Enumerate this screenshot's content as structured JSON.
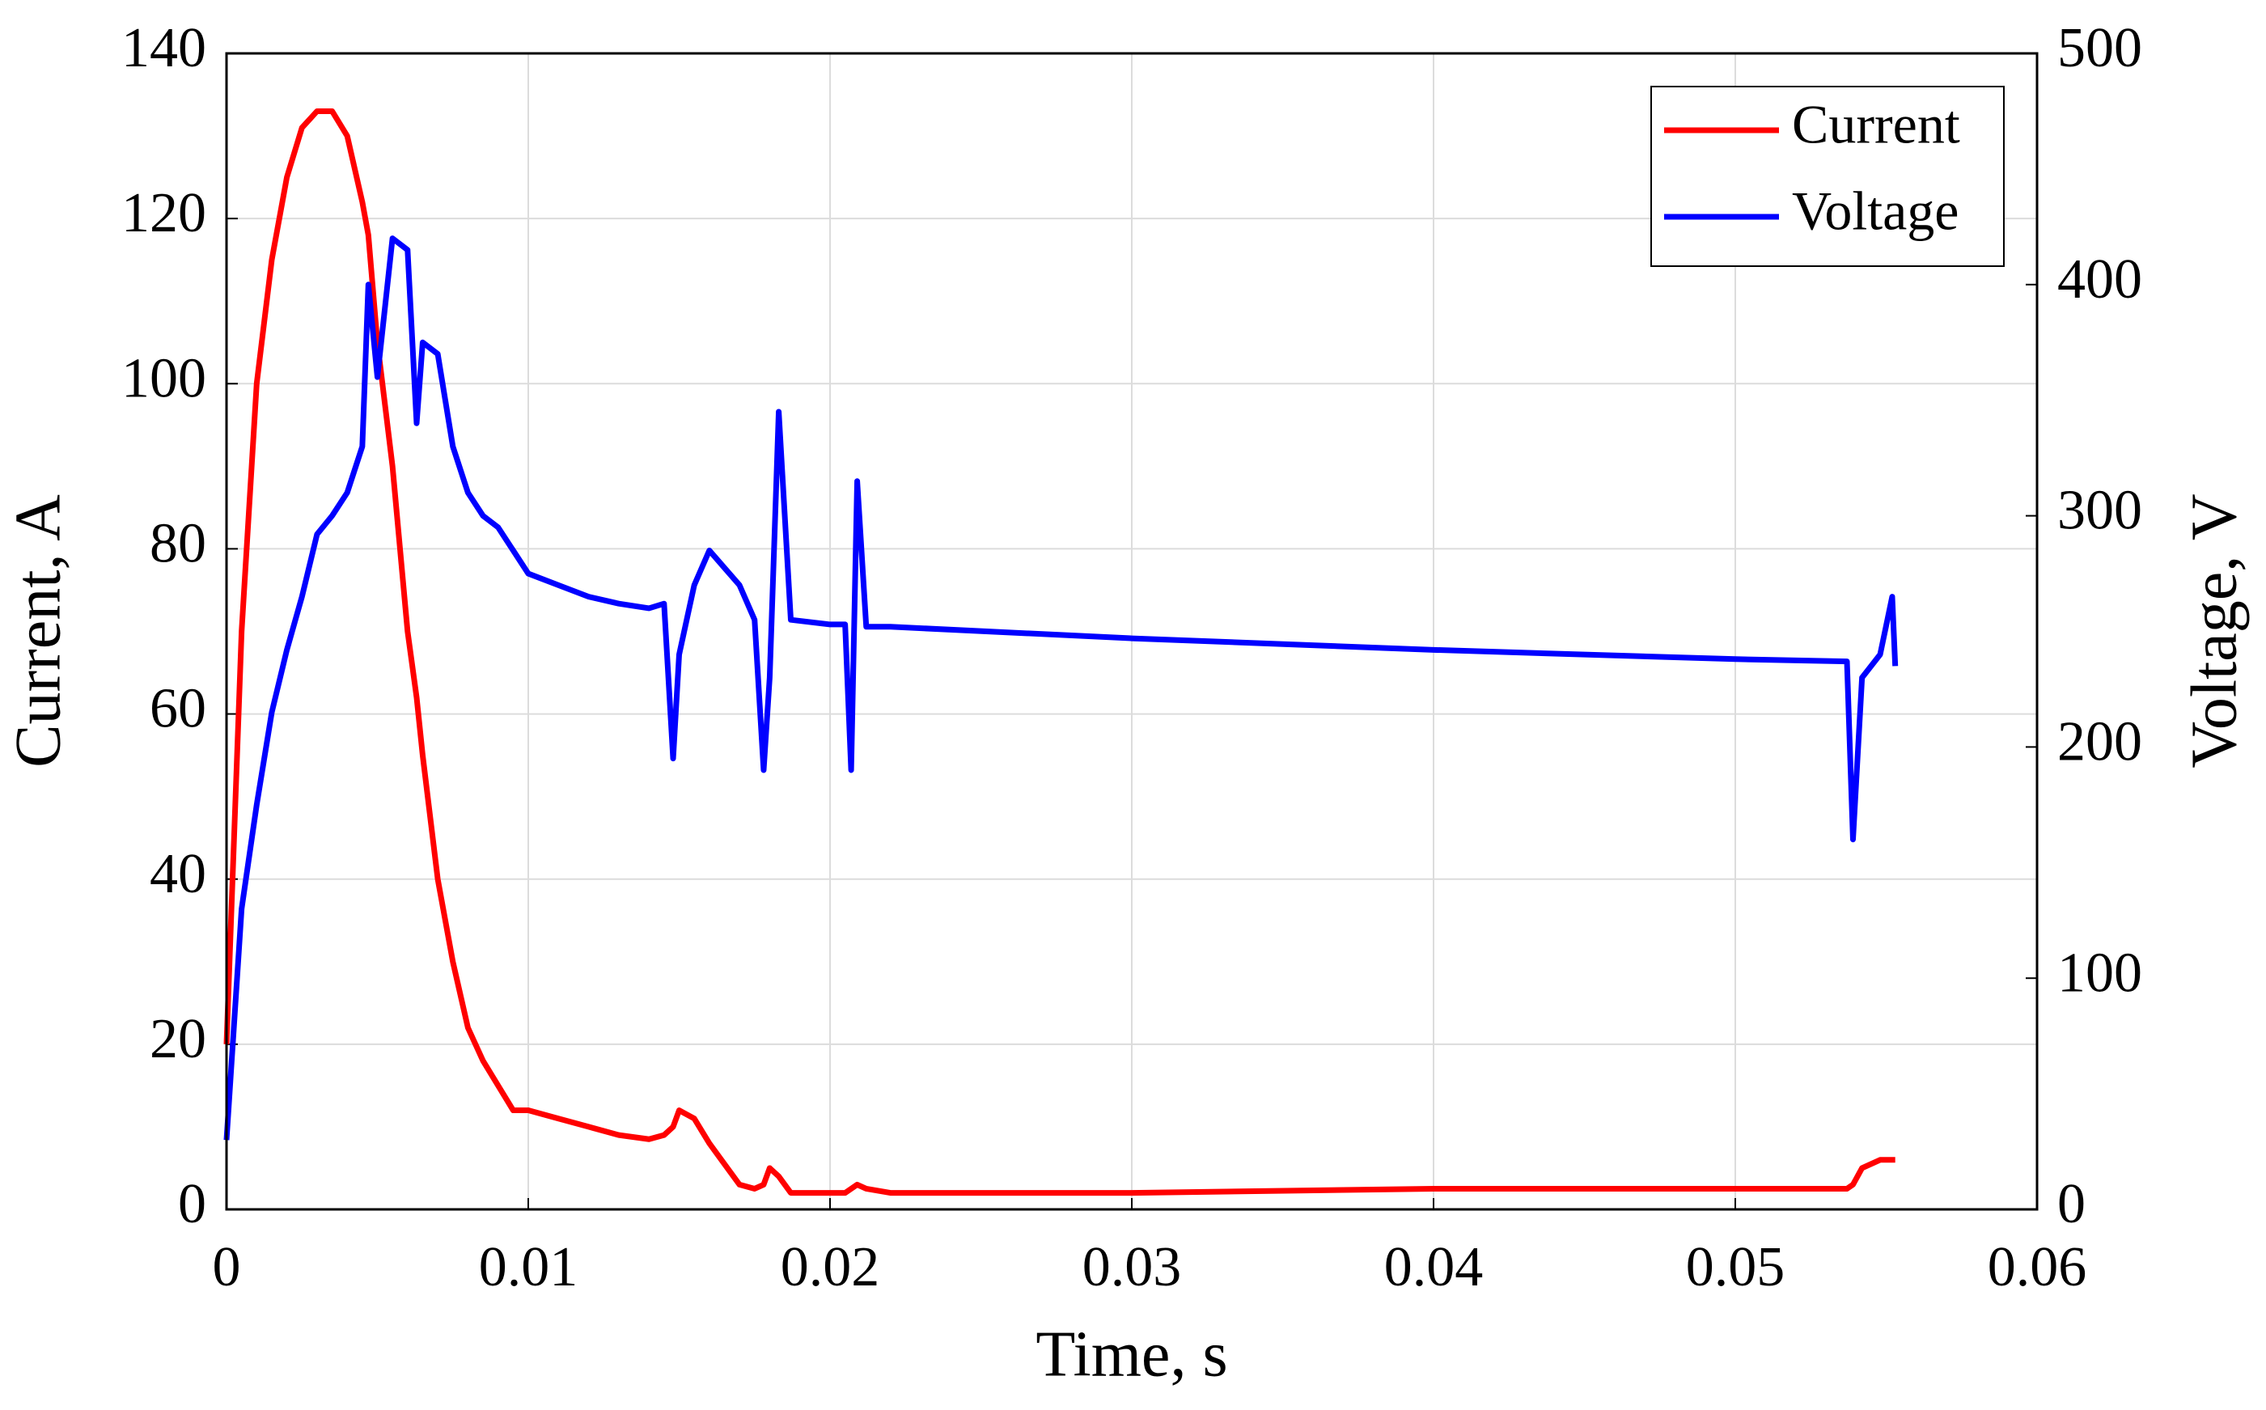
{
  "chart_data": {
    "type": "line",
    "xlabel": "Time, s",
    "ylabel": "Current, A",
    "y2label": "Voltage, V",
    "x": [
      0,
      0.0005,
      0.001,
      0.0015,
      0.002,
      0.0025,
      0.003,
      0.0035,
      0.004,
      0.0045,
      0.0047,
      0.005,
      0.0055,
      0.006,
      0.0063,
      0.0065,
      0.007,
      0.0075,
      0.008,
      0.0085,
      0.009,
      0.0095,
      0.01,
      0.011,
      0.012,
      0.013,
      0.014,
      0.0145,
      0.0148,
      0.015,
      0.0155,
      0.016,
      0.017,
      0.0175,
      0.0178,
      0.018,
      0.0183,
      0.0187,
      0.02,
      0.0205,
      0.0207,
      0.0209,
      0.0212,
      0.022,
      0.03,
      0.04,
      0.05,
      0.0537,
      0.0539,
      0.0542,
      0.0548,
      0.0552,
      0.0553
    ],
    "series": [
      {
        "name": "Current",
        "color": "#ff0000",
        "axis": "y",
        "values": [
          20,
          70,
          100,
          115,
          125,
          131,
          133,
          133,
          130,
          122,
          118,
          105,
          90,
          70,
          62,
          55,
          40,
          30,
          22,
          18,
          15,
          12,
          12,
          11,
          10,
          9,
          8.5,
          9,
          10,
          12,
          11,
          8,
          3,
          2.5,
          3,
          5,
          4,
          2,
          2,
          2,
          2.5,
          3,
          2.5,
          2,
          2,
          2.5,
          2.5,
          2.5,
          3,
          5,
          6,
          6,
          6
        ]
      },
      {
        "name": "Voltage",
        "color": "#0000ff",
        "axis": "y2",
        "values": [
          30,
          130,
          175,
          215,
          242,
          265,
          292,
          300,
          310,
          330,
          400,
          360,
          420,
          415,
          340,
          375,
          370,
          330,
          310,
          300,
          295,
          285,
          275,
          270,
          265,
          262,
          260,
          262,
          195,
          240,
          270,
          285,
          270,
          255,
          190,
          230,
          345,
          255,
          253,
          253,
          190,
          315,
          252,
          252,
          247,
          242,
          238,
          237,
          160,
          230,
          240,
          265,
          235
        ]
      }
    ],
    "xlim": [
      0,
      0.06
    ],
    "xticks": [
      0,
      0.01,
      0.02,
      0.03,
      0.04,
      0.05,
      0.06
    ],
    "ylim": [
      0,
      140
    ],
    "yticks": [
      0,
      20,
      40,
      60,
      80,
      100,
      120,
      140
    ],
    "y2lim": [
      0,
      500
    ],
    "y2ticks": [
      0,
      100,
      200,
      300,
      400,
      500
    ],
    "grid": true,
    "legend": "upper right"
  }
}
